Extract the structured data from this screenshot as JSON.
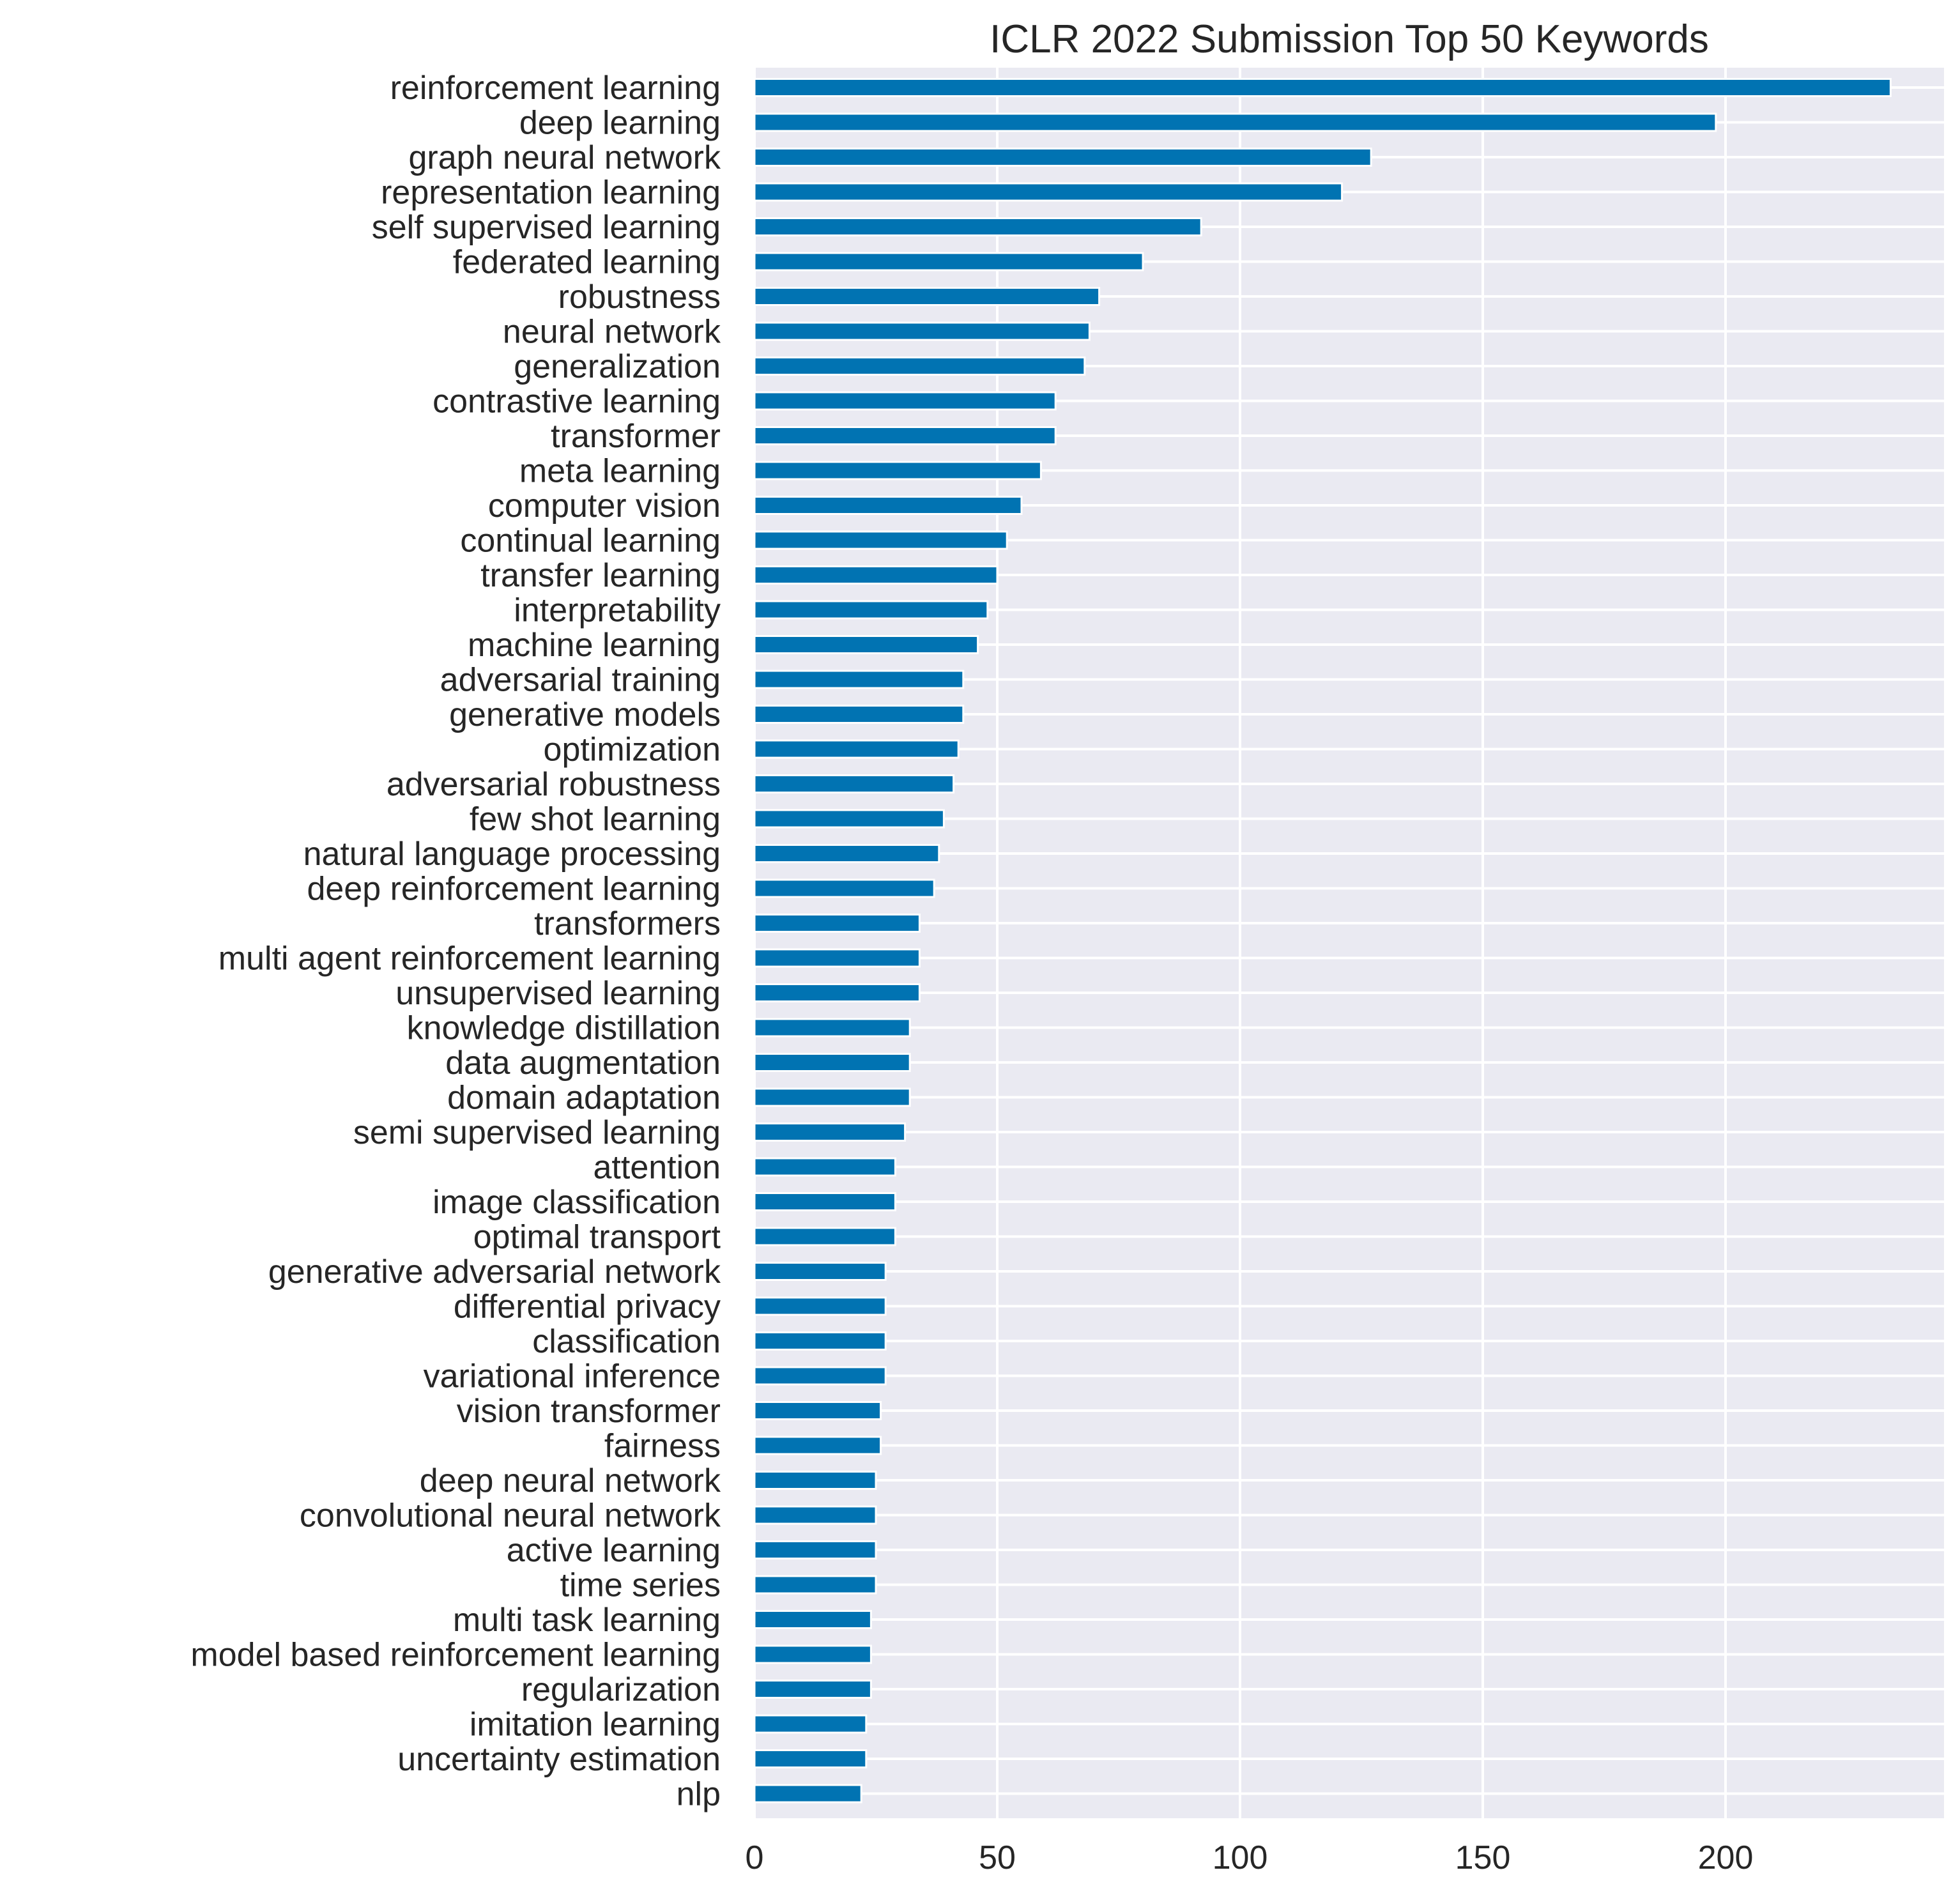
{
  "chart_data": {
    "type": "bar",
    "orientation": "horizontal",
    "title": "ICLR 2022 Submission Top 50 Keywords",
    "xlabel": "",
    "ylabel": "",
    "xlim": [
      0,
      245
    ],
    "xticks": [
      0,
      50,
      100,
      150,
      200
    ],
    "grid": true,
    "legend": "none",
    "colors": {
      "bar": "#0173b2",
      "plot_background": "#eaeaf2",
      "grid": "#ffffff",
      "text": "#262626"
    },
    "categories": [
      "reinforcement learning",
      "deep learning",
      "graph neural network",
      "representation learning",
      "self supervised learning",
      "federated learning",
      "robustness",
      "neural network",
      "generalization",
      "contrastive learning",
      "transformer",
      "meta learning",
      "computer vision",
      "continual learning",
      "transfer learning",
      "interpretability",
      "machine learning",
      "adversarial training",
      "generative models",
      "optimization",
      "adversarial robustness",
      "few shot learning",
      "natural language processing",
      "deep reinforcement learning",
      "transformers",
      "multi agent reinforcement learning",
      "unsupervised learning",
      "knowledge distillation",
      "data augmentation",
      "domain adaptation",
      "semi supervised learning",
      "attention",
      "image classification",
      "optimal transport",
      "generative adversarial network",
      "differential privacy",
      "classification",
      "variational inference",
      "vision transformer",
      "fairness",
      "deep neural network",
      "convolutional neural network",
      "active learning",
      "time series",
      "multi task learning",
      "model based reinforcement learning",
      "regularization",
      "imitation learning",
      "uncertainty estimation",
      "nlp"
    ],
    "values": [
      234,
      198,
      127,
      121,
      92,
      80,
      71,
      69,
      68,
      62,
      62,
      59,
      55,
      52,
      50,
      48,
      46,
      43,
      43,
      42,
      41,
      39,
      38,
      37,
      34,
      34,
      34,
      32,
      32,
      32,
      31,
      29,
      29,
      29,
      27,
      27,
      27,
      27,
      26,
      26,
      25,
      25,
      25,
      25,
      24,
      24,
      24,
      23,
      23,
      22
    ]
  }
}
